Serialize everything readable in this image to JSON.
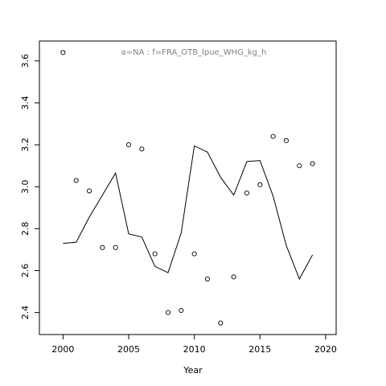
{
  "chart_data": {
    "type": "line",
    "title": "a=NA  :  f=FRA_OTB_lpue_WHG_kg_h",
    "xlabel": "Year",
    "ylabel": "",
    "xlim": [
      1998.2,
      2020.8
    ],
    "ylim": [
      2.295,
      3.695
    ],
    "xticks": [
      2000,
      2005,
      2010,
      2015,
      2020
    ],
    "yticks": [
      2.4,
      2.6,
      2.8,
      3.0,
      3.2,
      3.4,
      3.6
    ],
    "xtick_labels": [
      "2000",
      "2005",
      "2010",
      "2015",
      "2020"
    ],
    "ytick_labels": [
      "2.4",
      "2.6",
      "2.8",
      "3.0",
      "3.2",
      "3.4",
      "3.6"
    ],
    "grid": false,
    "series": [
      {
        "kind": "points",
        "x": [
          2000,
          2001,
          2002,
          2003,
          2004,
          2005,
          2006,
          2007,
          2008,
          2009,
          2010,
          2011,
          2012,
          2013,
          2014,
          2015,
          2016,
          2017,
          2018,
          2019
        ],
        "values": [
          3.64,
          3.03,
          2.98,
          2.71,
          2.71,
          3.2,
          3.18,
          2.68,
          2.4,
          2.41,
          2.68,
          2.56,
          2.35,
          2.57,
          2.97,
          3.01,
          3.24,
          3.22,
          3.1,
          3.11
        ]
      },
      {
        "kind": "line",
        "x": [
          2000,
          2001,
          2002,
          2003,
          2004,
          2005,
          2006,
          2007,
          2008,
          2009,
          2010,
          2011,
          2012,
          2013,
          2014,
          2015,
          2016,
          2017,
          2018,
          2019
        ],
        "values": [
          2.73,
          2.735,
          2.855,
          2.96,
          3.065,
          2.775,
          2.76,
          2.62,
          2.59,
          2.78,
          3.195,
          3.165,
          3.045,
          2.96,
          3.12,
          3.125,
          2.955,
          2.72,
          2.56,
          2.675
        ]
      }
    ]
  }
}
